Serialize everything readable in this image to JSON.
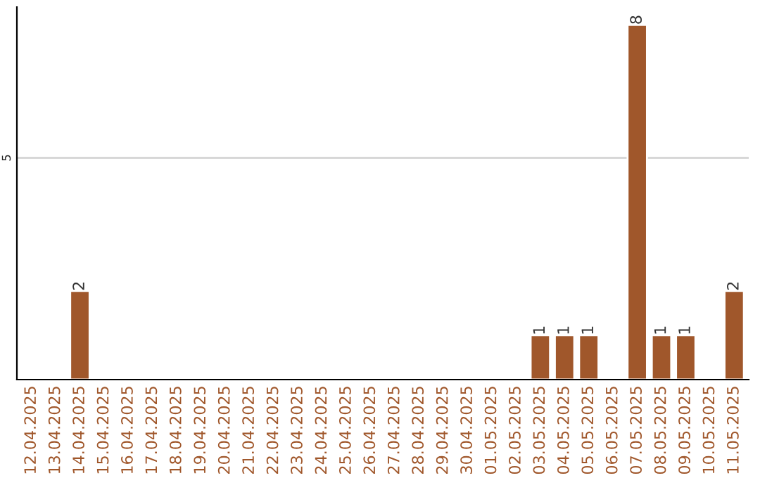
{
  "chart_data": {
    "type": "bar",
    "categories": [
      "12.04.2025",
      "13.04.2025",
      "14.04.2025",
      "15.04.2025",
      "16.04.2025",
      "17.04.2025",
      "18.04.2025",
      "19.04.2025",
      "20.04.2025",
      "21.04.2025",
      "22.04.2025",
      "23.04.2025",
      "24.04.2025",
      "25.04.2025",
      "26.04.2025",
      "27.04.2025",
      "28.04.2025",
      "29.04.2025",
      "30.04.2025",
      "01.05.2025",
      "02.05.2025",
      "03.05.2025",
      "04.05.2025",
      "05.05.2025",
      "06.05.2025",
      "07.05.2025",
      "08.05.2025",
      "09.05.2025",
      "10.05.2025",
      "11.05.2025"
    ],
    "values": [
      null,
      null,
      2,
      null,
      null,
      null,
      null,
      null,
      null,
      null,
      null,
      null,
      null,
      null,
      null,
      null,
      null,
      null,
      null,
      null,
      null,
      1,
      1,
      1,
      null,
      8,
      1,
      1,
      null,
      2
    ],
    "value_labels": [
      null,
      null,
      "2",
      null,
      null,
      null,
      null,
      null,
      null,
      null,
      null,
      null,
      null,
      null,
      null,
      null,
      null,
      null,
      null,
      null,
      null,
      "1",
      "1",
      "1",
      null,
      "8",
      "1",
      "1",
      null,
      "2"
    ],
    "color": "#a0572b",
    "ylim": [
      0,
      8.4
    ],
    "yticks": [
      5
    ],
    "grid": "y"
  }
}
